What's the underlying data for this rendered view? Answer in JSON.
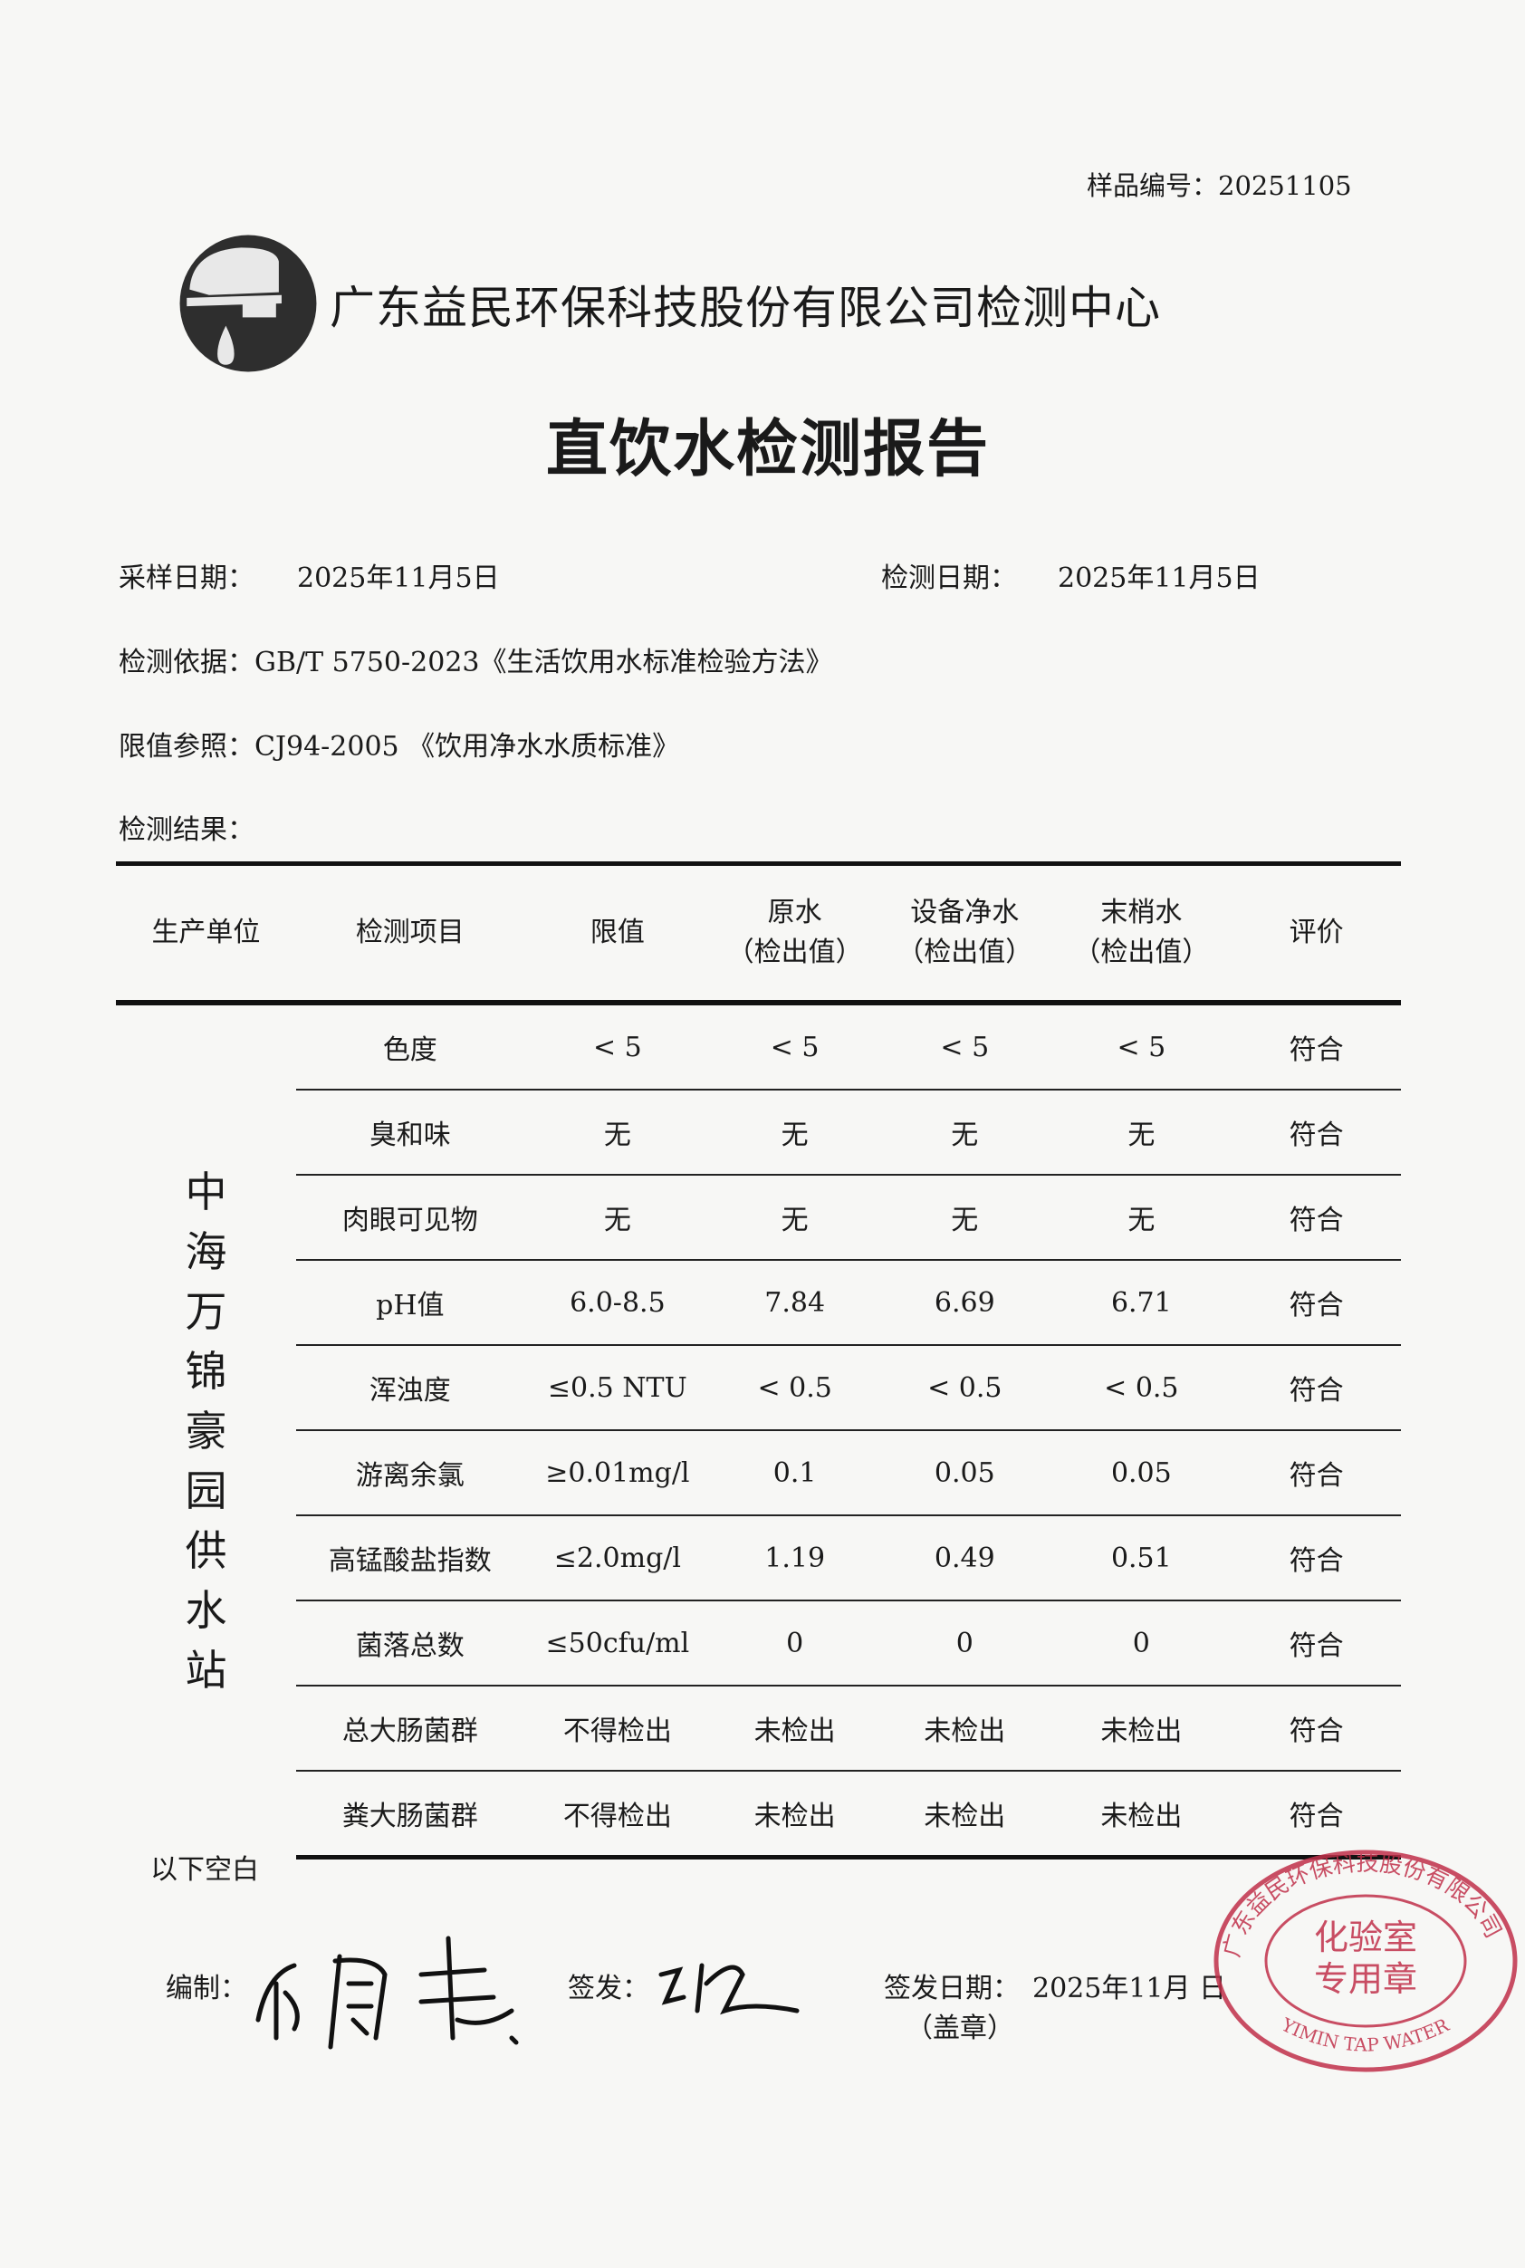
{
  "sample_number": "样品编号：20251105",
  "company": "广东益民环保科技股份有限公司检测中心",
  "title": "直饮水检测报告",
  "info": {
    "sampling_date_label": "采样日期：",
    "sampling_date": "2025年11月5日",
    "test_date_label": "检测日期：",
    "test_date": "2025年11月5日",
    "basis": "检测依据：GB/T 5750-2023《生活饮用水标准检验方法》",
    "limit_ref": "限值参照：CJ94-2005 《饮用净水水质标准》",
    "results_label": "检测结果："
  },
  "table": {
    "headers": [
      "生产单位",
      "检测项目",
      "限值",
      "原水\n（检出值）",
      "设备净水\n（检出值）",
      "末梢水\n（检出值）",
      "评价"
    ],
    "unit": "中海万锦豪园供水站",
    "rows": [
      [
        "色度",
        "< 5",
        "< 5",
        "< 5",
        "< 5",
        "符合"
      ],
      [
        "臭和味",
        "无",
        "无",
        "无",
        "无",
        "符合"
      ],
      [
        "肉眼可见物",
        "无",
        "无",
        "无",
        "无",
        "符合"
      ],
      [
        "pH值",
        "6.0-8.5",
        "7.84",
        "6.69",
        "6.71",
        "符合"
      ],
      [
        "浑浊度",
        "≤0.5 NTU",
        "< 0.5",
        "< 0.5",
        "< 0.5",
        "符合"
      ],
      [
        "游离余氯",
        "≥0.01mg/l",
        "0.1",
        "0.05",
        "0.05",
        "符合"
      ],
      [
        "高锰酸盐指数",
        "≤2.0mg/l",
        "1.19",
        "0.49",
        "0.51",
        "符合"
      ],
      [
        "菌落总数",
        "≤50cfu/ml",
        "0",
        "0",
        "0",
        "符合"
      ],
      [
        "总大肠菌群",
        "不得检出",
        "未检出",
        "未检出",
        "未检出",
        "符合"
      ],
      [
        "粪大肠菌群",
        "不得检出",
        "未检出",
        "未检出",
        "未检出",
        "符合"
      ]
    ]
  },
  "footer": {
    "blank_note": "以下空白",
    "prepared_label": "编制：",
    "issued_label": "签发：",
    "issue_date_label": "签发日期：",
    "issue_date": "2025年11月  日",
    "seal_note": "（盖章）"
  },
  "stamp": {
    "outer_text": "广东益民环保科技股份有限公司",
    "inner_text": "化验室专用章",
    "english": "YIMIN TAP WATER",
    "color": "#c0304a"
  }
}
